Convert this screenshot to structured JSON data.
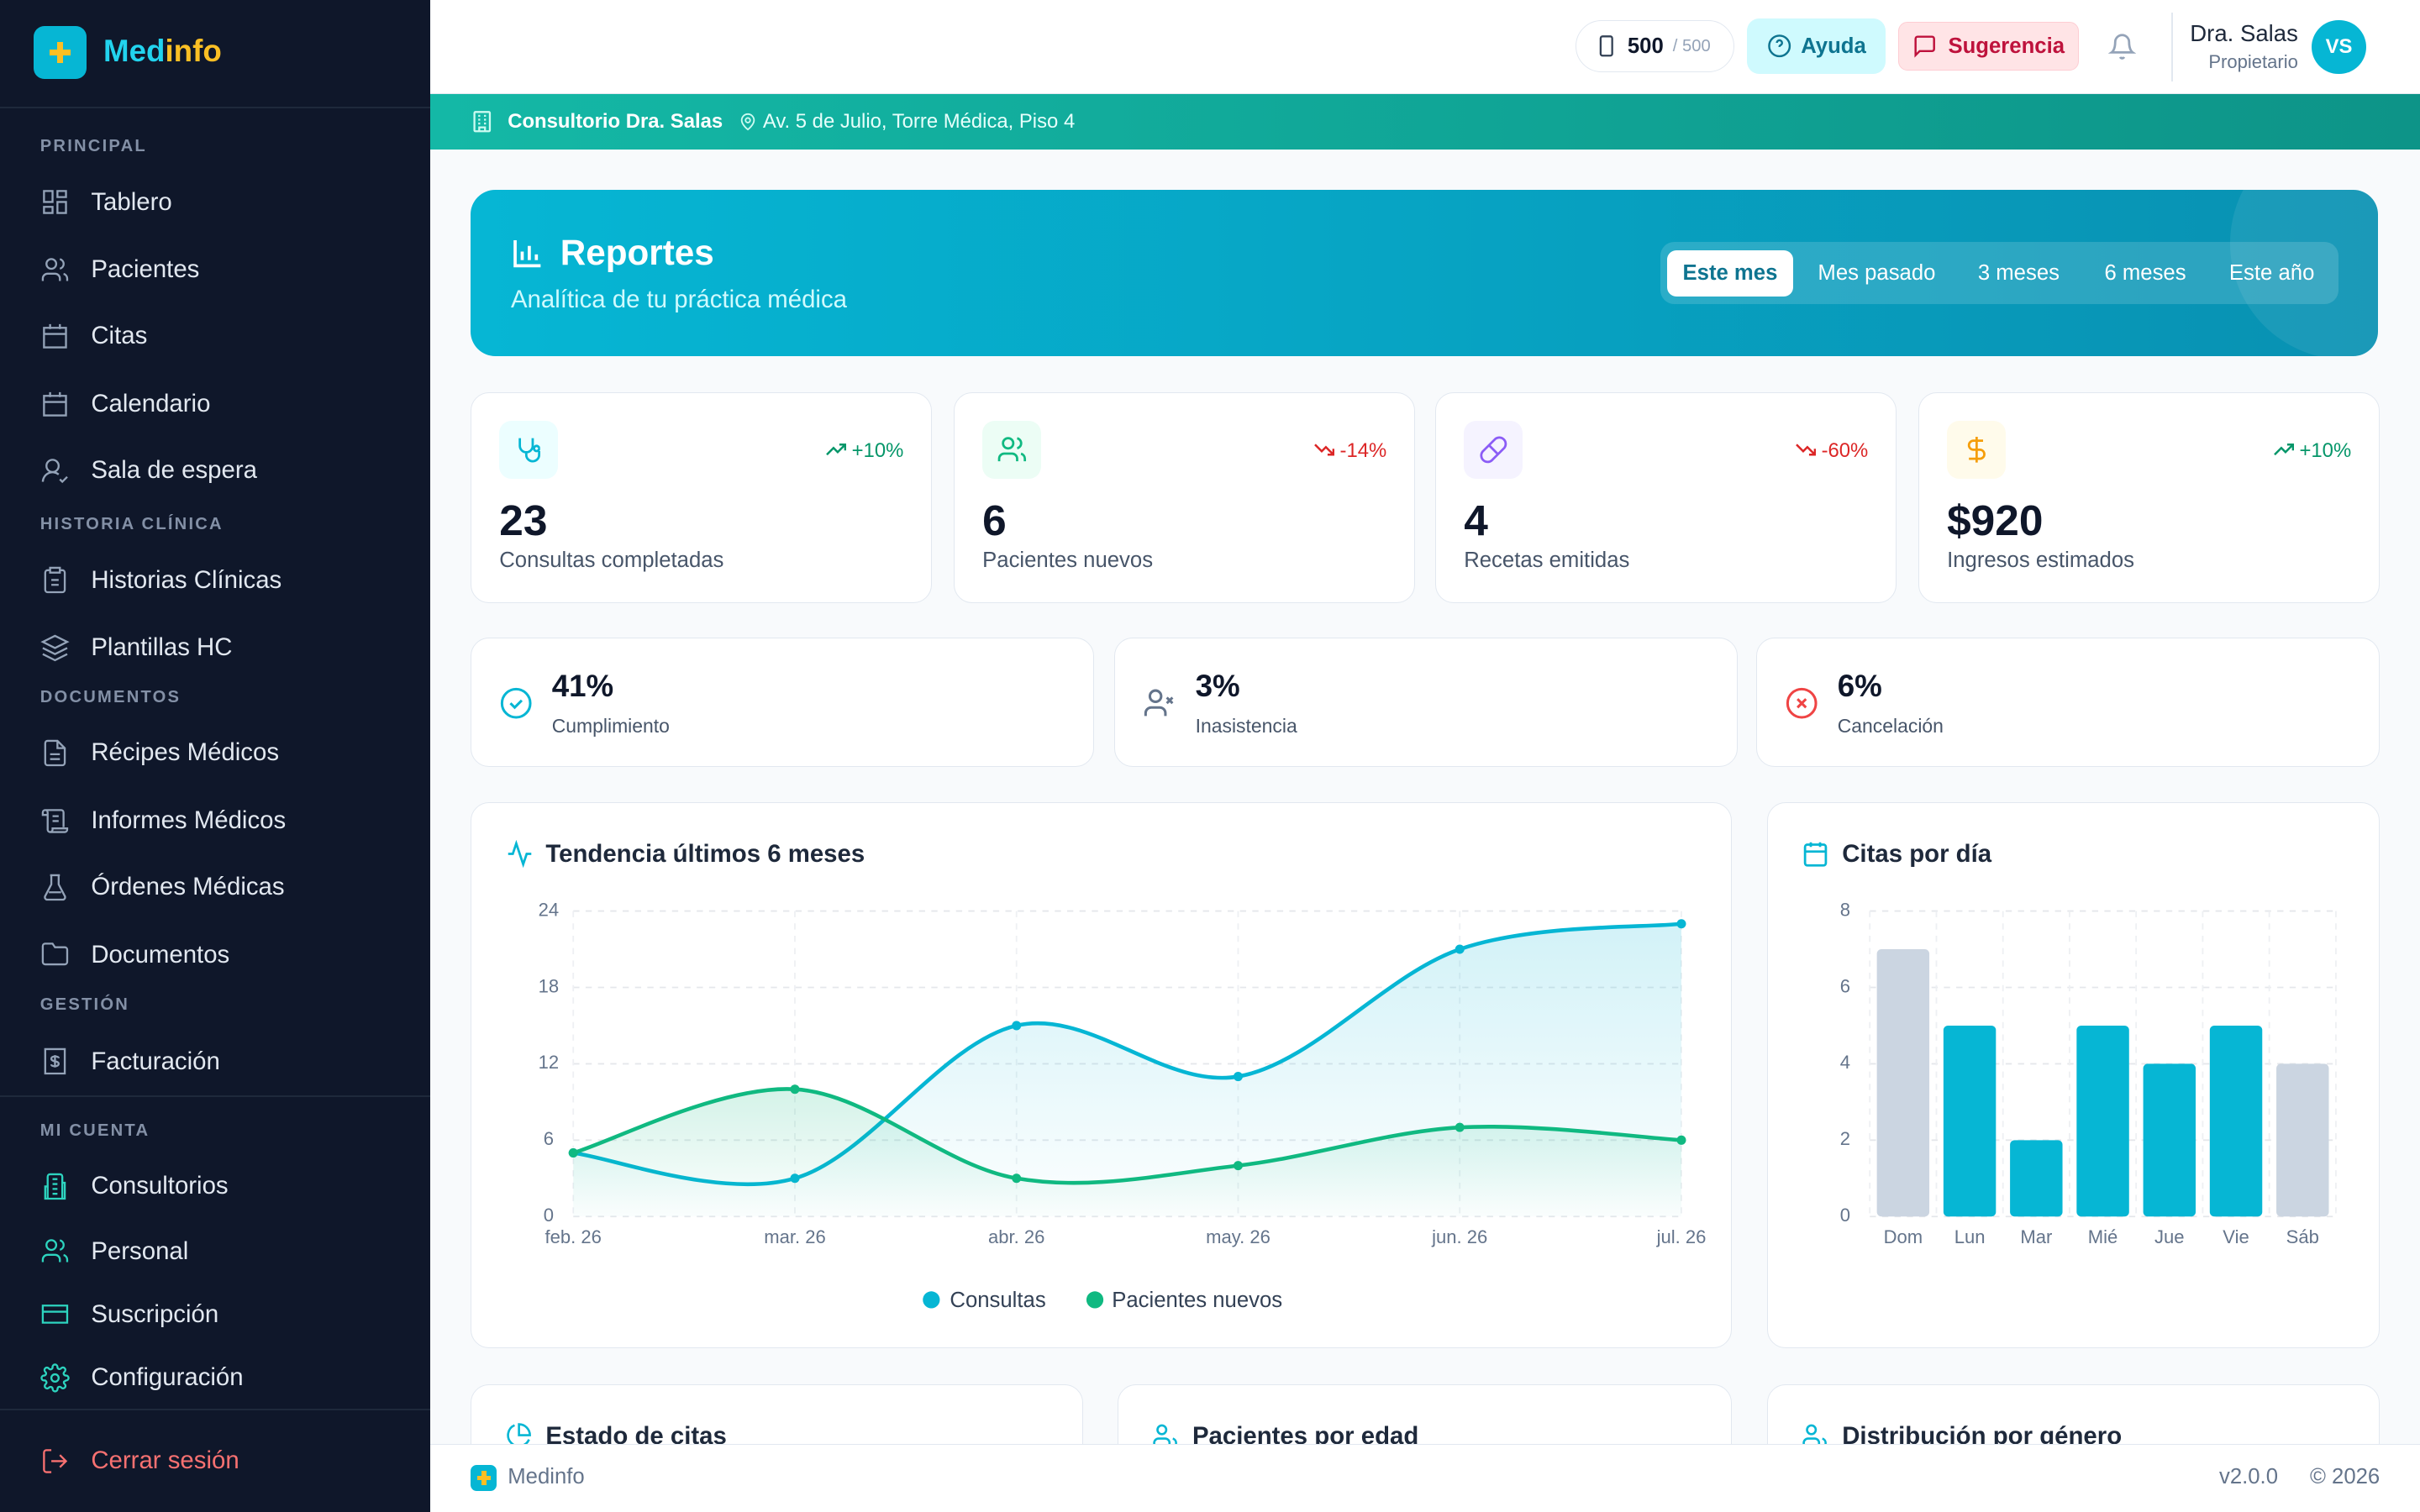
{
  "sidebar": {
    "brand": [
      "Med",
      "info"
    ],
    "sections": [
      {
        "title": "PRINCIPAL",
        "items": [
          "Tablero",
          "Pacientes",
          "Citas",
          "Calendario",
          "Sala de espera"
        ]
      },
      {
        "title": "HISTORIA CLÍNICA",
        "items": [
          "Historias Clínicas",
          "Plantillas HC"
        ]
      },
      {
        "title": "DOCUMENTOS",
        "items": [
          "Récipes Médicos",
          "Informes Médicos",
          "Órdenes Médicas",
          "Documentos"
        ]
      },
      {
        "title": "GESTIÓN",
        "items": [
          "Facturación"
        ]
      },
      {
        "title": "MI CUENTA",
        "items": [
          "Consultorios",
          "Personal",
          "Suscripción",
          "Configuración"
        ]
      }
    ],
    "logout": "Cerrar sesión"
  },
  "topbar": {
    "credits": "500",
    "credits_total": "/ 500",
    "help": "Ayuda",
    "suggest": "Sugerencia",
    "user_name": "Dra. Salas",
    "user_role": "Propietario",
    "avatar": "VS"
  },
  "clinic_bar": {
    "name": "Consultorio Dra. Salas",
    "address": "Av. 5 de Julio, Torre Médica, Piso 4"
  },
  "banner": {
    "title": "Reportes",
    "subtitle": "Analítica de tu práctica médica",
    "periods": [
      "Este mes",
      "Mes pasado",
      "3 meses",
      "6 meses",
      "Este año"
    ]
  },
  "kpis": [
    {
      "value": "23",
      "label": "Consultas completadas",
      "trend": "+10%"
    },
    {
      "value": "6",
      "label": "Pacientes nuevos",
      "trend": "-14%"
    },
    {
      "value": "4",
      "label": "Recetas emitidas",
      "trend": "-60%"
    },
    {
      "value": "$920",
      "label": "Ingresos estimados",
      "trend": "+10%"
    }
  ],
  "rates": [
    {
      "value": "41%",
      "label": "Cumplimiento"
    },
    {
      "value": "3%",
      "label": "Inasistencia"
    },
    {
      "value": "6%",
      "label": "Cancelación"
    }
  ],
  "chart_data": [
    {
      "type": "line",
      "title": "Tendencia últimos 6 meses",
      "categories": [
        "feb. 26",
        "mar. 26",
        "abr. 26",
        "may. 26",
        "jun. 26",
        "jul. 26"
      ],
      "series": [
        {
          "name": "Consultas",
          "color": "#06b6d4",
          "values": [
            5,
            3,
            15,
            11,
            21,
            23
          ]
        },
        {
          "name": "Pacientes nuevos",
          "color": "#10b981",
          "values": [
            5,
            10,
            3,
            4,
            7,
            6
          ]
        }
      ],
      "ylim": [
        0,
        24
      ],
      "yticks": [
        0,
        6,
        12,
        18,
        24
      ],
      "grid": true,
      "legend": "bottom"
    },
    {
      "type": "bar",
      "title": "Citas por día",
      "categories": [
        "Dom",
        "Lun",
        "Mar",
        "Mié",
        "Jue",
        "Vie",
        "Sáb"
      ],
      "values": [
        7,
        5,
        2,
        5,
        4,
        5,
        4
      ],
      "colors": [
        "#cbd5e1",
        "#06b6d4",
        "#06b6d4",
        "#06b6d4",
        "#06b6d4",
        "#06b6d4",
        "#cbd5e1"
      ],
      "ylim": [
        0,
        8
      ],
      "yticks": [
        0,
        2,
        4,
        6,
        8
      ],
      "grid": true
    }
  ],
  "cards": [
    "Estado de citas",
    "Pacientes por edad",
    "Distribución por género"
  ],
  "footer": {
    "brand": "Medinfo",
    "version": "v2.0.0",
    "copyright": "© 2026"
  }
}
